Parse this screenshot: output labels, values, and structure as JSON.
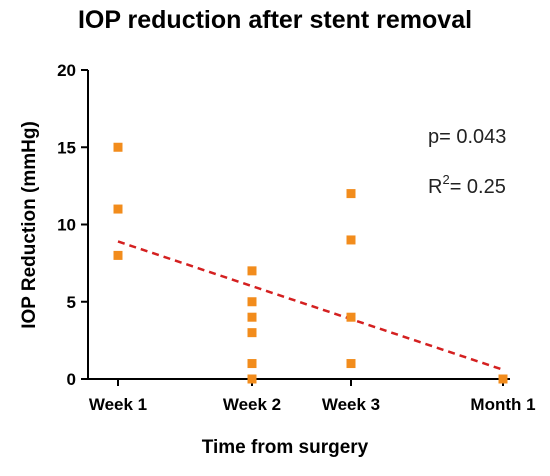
{
  "chart_data": {
    "type": "scatter",
    "title": "IOP reduction after stent removal",
    "xlabel": "Time from surgery",
    "ylabel": "IOP Reduction (mmHg)",
    "categories": [
      "Week 1",
      "Week 2",
      "Week 3",
      "Month 1"
    ],
    "x_positions": [
      1,
      2,
      3,
      4
    ],
    "ylim": [
      0,
      20
    ],
    "yticks": [
      0,
      5,
      10,
      15,
      20
    ],
    "series": [
      {
        "points": [
          {
            "x": "Week 1",
            "y": 15
          },
          {
            "x": "Week 1",
            "y": 11
          },
          {
            "x": "Week 1",
            "y": 8
          },
          {
            "x": "Week 2",
            "y": 7
          },
          {
            "x": "Week 2",
            "y": 5
          },
          {
            "x": "Week 2",
            "y": 4
          },
          {
            "x": "Week 2",
            "y": 3
          },
          {
            "x": "Week 2",
            "y": 1
          },
          {
            "x": "Week 2",
            "y": 0
          },
          {
            "x": "Week 3",
            "y": 12
          },
          {
            "x": "Week 3",
            "y": 9
          },
          {
            "x": "Week 3",
            "y": 4
          },
          {
            "x": "Week 3",
            "y": 1
          },
          {
            "x": "Month 1",
            "y": 0
          }
        ]
      }
    ],
    "trendline": {
      "style": "dashed",
      "from": {
        "x": "Week 1",
        "y": 8.9
      },
      "to": {
        "x": "Month 1",
        "y": 0.6
      }
    },
    "annotations": {
      "p_value": "p= 0.043",
      "r2_prefix": "R",
      "r2_sup": "2",
      "r2_suffix": "= 0.25"
    },
    "grid": false,
    "colors": {
      "points": "#f28c1c",
      "trendline": "#d42020",
      "axis": "#000000"
    }
  }
}
